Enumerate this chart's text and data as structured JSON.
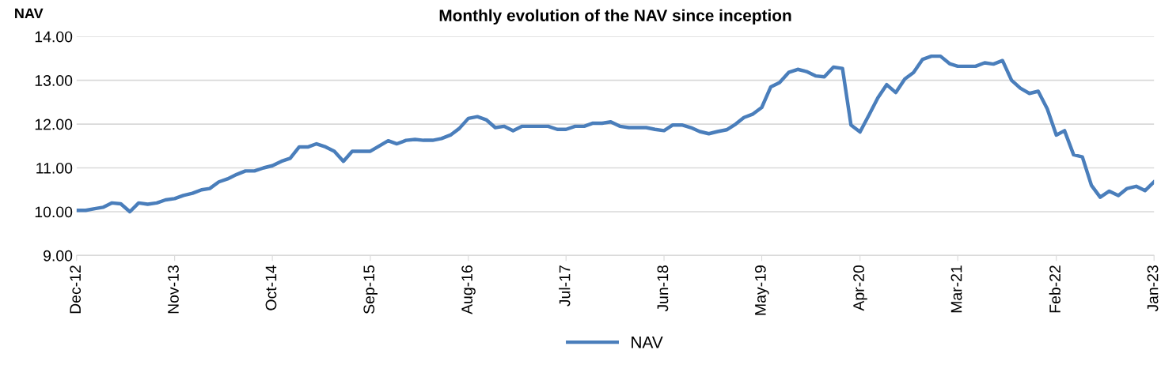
{
  "chart_data": {
    "type": "line",
    "title": "Monthly evolution of the NAV since inception",
    "ylabel": "NAV",
    "x": [
      "2012-12",
      "2013-01",
      "2013-02",
      "2013-03",
      "2013-04",
      "2013-05",
      "2013-06",
      "2013-07",
      "2013-08",
      "2013-09",
      "2013-10",
      "2013-11",
      "2013-12",
      "2014-01",
      "2014-02",
      "2014-03",
      "2014-04",
      "2014-05",
      "2014-06",
      "2014-07",
      "2014-08",
      "2014-09",
      "2014-10",
      "2014-11",
      "2014-12",
      "2015-01",
      "2015-02",
      "2015-03",
      "2015-04",
      "2015-05",
      "2015-06",
      "2015-07",
      "2015-08",
      "2015-09",
      "2015-10",
      "2015-11",
      "2015-12",
      "2016-01",
      "2016-02",
      "2016-03",
      "2016-04",
      "2016-05",
      "2016-06",
      "2016-07",
      "2016-08",
      "2016-09",
      "2016-10",
      "2016-11",
      "2016-12",
      "2017-01",
      "2017-02",
      "2017-03",
      "2017-04",
      "2017-05",
      "2017-06",
      "2017-07",
      "2017-08",
      "2017-09",
      "2017-10",
      "2017-11",
      "2017-12",
      "2018-01",
      "2018-02",
      "2018-03",
      "2018-04",
      "2018-05",
      "2018-06",
      "2018-07",
      "2018-08",
      "2018-09",
      "2018-10",
      "2018-11",
      "2018-12",
      "2019-01",
      "2019-02",
      "2019-03",
      "2019-04",
      "2019-05",
      "2019-06",
      "2019-07",
      "2019-08",
      "2019-09",
      "2019-10",
      "2019-11",
      "2019-12",
      "2020-01",
      "2020-02",
      "2020-03",
      "2020-04",
      "2020-05",
      "2020-06",
      "2020-07",
      "2020-08",
      "2020-09",
      "2020-10",
      "2020-11",
      "2020-12",
      "2021-01",
      "2021-02",
      "2021-03",
      "2021-04",
      "2021-05",
      "2021-06",
      "2021-07",
      "2021-08",
      "2021-09",
      "2021-10",
      "2021-11",
      "2021-12",
      "2022-01",
      "2022-02",
      "2022-03",
      "2022-04",
      "2022-05",
      "2022-06",
      "2022-07",
      "2022-08",
      "2022-09",
      "2022-10",
      "2022-11",
      "2022-12",
      "2023-01"
    ],
    "series": [
      {
        "name": "NAV",
        "color": "#4a7ebb",
        "values": [
          10.03,
          10.03,
          10.07,
          10.1,
          10.2,
          10.18,
          10.0,
          10.2,
          10.17,
          10.2,
          10.27,
          10.3,
          10.37,
          10.42,
          10.5,
          10.53,
          10.68,
          10.75,
          10.85,
          10.93,
          10.93,
          11.0,
          11.05,
          11.15,
          11.22,
          11.48,
          11.48,
          11.55,
          11.48,
          11.38,
          11.15,
          11.38,
          11.38,
          11.38,
          11.5,
          11.62,
          11.55,
          11.63,
          11.65,
          11.63,
          11.63,
          11.67,
          11.75,
          11.9,
          12.13,
          12.17,
          12.1,
          11.92,
          11.95,
          11.85,
          11.95,
          11.95,
          11.95,
          11.95,
          11.88,
          11.88,
          11.95,
          11.95,
          12.02,
          12.02,
          12.05,
          11.95,
          11.92,
          11.92,
          11.92,
          11.88,
          11.85,
          11.98,
          11.98,
          11.92,
          11.83,
          11.78,
          11.83,
          11.87,
          12.0,
          12.15,
          12.23,
          12.38,
          12.85,
          12.95,
          13.18,
          13.25,
          13.2,
          13.1,
          13.08,
          13.3,
          13.27,
          11.98,
          11.82,
          12.2,
          12.6,
          12.9,
          12.72,
          13.03,
          13.18,
          13.48,
          13.55,
          13.55,
          13.38,
          13.32,
          13.32,
          13.32,
          13.4,
          13.37,
          13.45,
          13.0,
          12.82,
          12.7,
          12.75,
          12.35,
          11.75,
          11.85,
          11.3,
          11.25,
          10.6,
          10.33,
          10.47,
          10.37,
          10.53,
          10.58,
          10.48,
          10.68
        ]
      }
    ],
    "xlim": [
      "2012-12",
      "2023-01"
    ],
    "xticks": [
      {
        "value": "2012-12",
        "label": "Dec-12"
      },
      {
        "value": "2013-11",
        "label": "Nov-13"
      },
      {
        "value": "2014-10",
        "label": "Oct-14"
      },
      {
        "value": "2015-09",
        "label": "Sep-15"
      },
      {
        "value": "2016-08",
        "label": "Aug-16"
      },
      {
        "value": "2017-07",
        "label": "Jul-17"
      },
      {
        "value": "2018-06",
        "label": "Jun-18"
      },
      {
        "value": "2019-05",
        "label": "May-19"
      },
      {
        "value": "2020-04",
        "label": "Apr-20"
      },
      {
        "value": "2021-03",
        "label": "Mar-21"
      },
      {
        "value": "2022-02",
        "label": "Feb-22"
      },
      {
        "value": "2023-01",
        "label": "Jan-23"
      }
    ],
    "ylim": [
      9,
      14
    ],
    "yticks": [
      {
        "value": 9,
        "label": "9.00"
      },
      {
        "value": 10,
        "label": "10.00"
      },
      {
        "value": 11,
        "label": "11.00"
      },
      {
        "value": 12,
        "label": "12.00"
      },
      {
        "value": 13,
        "label": "13.00"
      },
      {
        "value": 14,
        "label": "14.00"
      }
    ],
    "grid": "y",
    "legend": "bottom",
    "line_style": "solid",
    "marker": "none"
  }
}
